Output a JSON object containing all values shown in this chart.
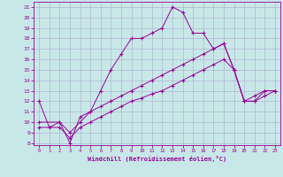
{
  "xlabel": "Windchill (Refroidissement éolien,°C)",
  "bg_color": "#c8e8e8",
  "line_color": "#990099",
  "grid_color": "#aaaacc",
  "ylim": [
    7.8,
    21.5
  ],
  "xlim": [
    -0.5,
    23.5
  ],
  "yticks": [
    8,
    9,
    10,
    11,
    12,
    13,
    14,
    15,
    16,
    17,
    18,
    19,
    20,
    21
  ],
  "xticks": [
    0,
    1,
    2,
    3,
    4,
    5,
    6,
    7,
    8,
    9,
    10,
    11,
    12,
    13,
    14,
    15,
    16,
    17,
    18,
    19,
    20,
    21,
    22,
    23
  ],
  "line1_x": [
    0,
    1,
    2,
    3,
    4,
    5,
    6,
    7,
    8,
    9,
    10,
    11,
    12,
    13,
    14,
    15,
    16,
    17,
    18,
    19,
    20,
    21,
    22,
    23
  ],
  "line1_y": [
    12,
    9.5,
    10,
    8,
    10.5,
    11,
    13,
    15,
    16.5,
    18,
    18,
    18.5,
    19,
    21,
    20.5,
    18.5,
    18.5,
    17,
    17.5,
    15,
    12,
    12,
    13,
    13
  ],
  "line2_x": [
    0,
    2,
    3,
    4,
    5,
    6,
    7,
    8,
    9,
    10,
    11,
    12,
    13,
    14,
    15,
    16,
    17,
    18,
    19,
    20,
    21,
    22,
    23
  ],
  "line2_y": [
    10,
    10,
    9,
    10,
    11,
    11.5,
    12,
    12.5,
    13,
    13.5,
    14,
    14.5,
    15,
    15.5,
    16,
    16.5,
    17,
    17.5,
    15,
    12,
    12.5,
    13,
    13
  ],
  "line3_x": [
    0,
    2,
    3,
    4,
    5,
    6,
    7,
    8,
    9,
    10,
    11,
    12,
    13,
    14,
    15,
    16,
    17,
    18,
    19,
    20,
    21,
    22,
    23
  ],
  "line3_y": [
    9.5,
    9.5,
    8.5,
    9.5,
    10,
    10.5,
    11,
    11.5,
    12,
    12.3,
    12.7,
    13,
    13.5,
    14,
    14.5,
    15,
    15.5,
    16,
    15,
    12,
    12,
    12.5,
    13
  ]
}
